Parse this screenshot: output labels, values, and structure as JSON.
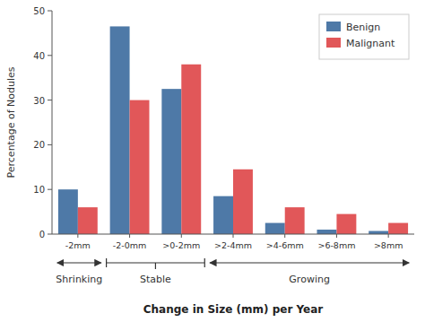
{
  "chart_data": {
    "type": "bar",
    "categories": [
      "-2mm",
      "-2-0mm",
      ">0-2mm",
      ">2-4mm",
      ">4-6mm",
      ">6-8mm",
      ">8mm"
    ],
    "series": [
      {
        "name": "Benign",
        "color": "#4e79a7",
        "values": [
          10,
          46.5,
          32.5,
          8.5,
          2.5,
          1.0,
          0.7
        ]
      },
      {
        "name": "Malignant",
        "color": "#e15759",
        "values": [
          6,
          30,
          38,
          14.5,
          6,
          4.5,
          2.5
        ]
      }
    ],
    "ylabel": "Percentage of Nodules",
    "xlabel": "Change in Size (mm) per Year",
    "annotations": [
      "Shrinking",
      "Stable",
      "Growing"
    ],
    "ylim": [
      0,
      50
    ],
    "yticks": [
      0,
      10,
      20,
      30,
      40,
      50
    ],
    "grid": false,
    "legend": "upper right"
  }
}
